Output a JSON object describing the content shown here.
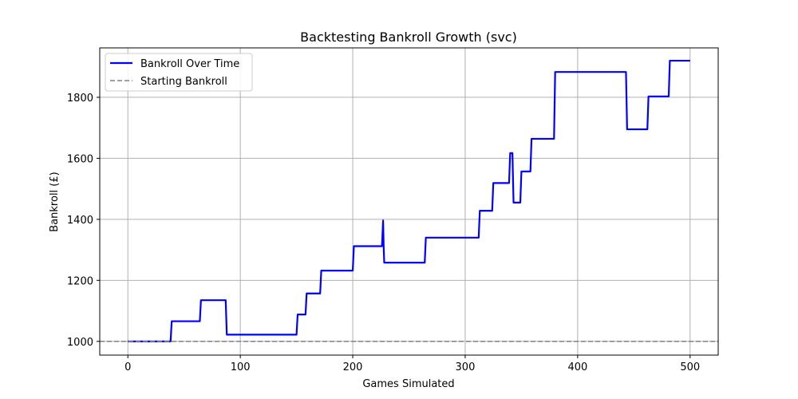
{
  "chart_data": {
    "type": "line",
    "title": "Backtesting Bankroll Growth (svc)",
    "xlabel": "Games Simulated",
    "ylabel": "Bankroll (£)",
    "xlim": [
      -25,
      525
    ],
    "ylim": [
      955,
      1962
    ],
    "xticks": [
      0,
      100,
      200,
      300,
      400,
      500
    ],
    "yticks": [
      1000,
      1200,
      1400,
      1600,
      1800
    ],
    "grid": true,
    "legend_position": "top-left",
    "series": [
      {
        "name": "Bankroll Over Time",
        "color": "#0000ff",
        "style": "solid",
        "x": [
          0,
          38,
          39,
          64,
          65,
          87,
          88,
          150,
          151,
          158,
          159,
          171,
          172,
          200,
          201,
          226,
          227,
          227.5,
          228,
          264,
          265,
          312,
          313,
          324,
          325,
          339,
          340,
          342,
          343,
          349,
          350,
          358,
          359,
          379,
          380,
          443,
          444,
          462,
          463,
          481,
          482,
          500
        ],
        "y": [
          1000,
          1000,
          1066,
          1066,
          1135,
          1135,
          1022,
          1022,
          1088,
          1088,
          1157,
          1157,
          1232,
          1232,
          1312,
          1312,
          1396,
          1310,
          1258,
          1258,
          1340,
          1340,
          1428,
          1428,
          1519,
          1519,
          1617,
          1617,
          1455,
          1455,
          1557,
          1557,
          1664,
          1664,
          1883,
          1883,
          1695,
          1695,
          1803,
          1803,
          1920,
          1920
        ]
      },
      {
        "name": "Starting Bankroll",
        "color": "#808080",
        "style": "dashed",
        "y_constant": 1000
      }
    ]
  }
}
